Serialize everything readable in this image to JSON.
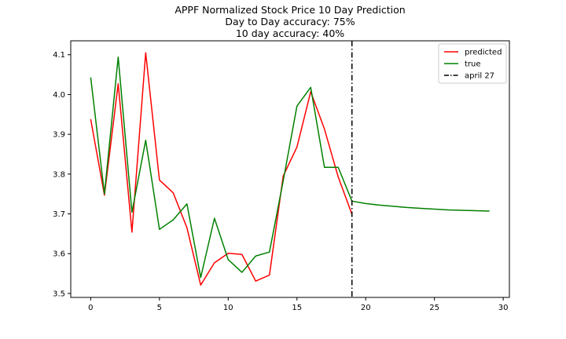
{
  "chart_data": {
    "type": "line",
    "title_lines": [
      "APPF Normalized Stock Price 10 Day Prediction",
      "Day to Day accuracy: 75%",
      "10 day accuracy: 40%"
    ],
    "xlabel": "",
    "ylabel": "",
    "xlim": [
      -1.45,
      30.45
    ],
    "ylim": [
      3.49,
      4.135
    ],
    "xticks": [
      0,
      5,
      10,
      15,
      20,
      25,
      30
    ],
    "xtick_labels": [
      "0",
      "5",
      "10",
      "15",
      "20",
      "25",
      "30"
    ],
    "yticks": [
      3.5,
      3.6,
      3.7,
      3.8,
      3.9,
      4.0,
      4.1
    ],
    "ytick_labels": [
      "3.5",
      "3.6",
      "3.7",
      "3.8",
      "3.9",
      "4.0",
      "4.1"
    ],
    "grid": false,
    "legend_position": "top-right",
    "series": [
      {
        "name": "predicted",
        "color": "#ff0000",
        "x": [
          0,
          1,
          2,
          3,
          4,
          5,
          6,
          7,
          8,
          9,
          10,
          11,
          12,
          13,
          14,
          15,
          16,
          17,
          18,
          19
        ],
        "values": [
          3.938,
          3.747,
          4.027,
          3.654,
          4.105,
          3.785,
          3.753,
          3.665,
          3.521,
          3.577,
          3.601,
          3.598,
          3.531,
          3.546,
          3.795,
          3.868,
          4.007,
          3.913,
          3.793,
          3.699
        ]
      },
      {
        "name": "true",
        "color": "#008000",
        "x": [
          0,
          1,
          2,
          3,
          4,
          5,
          6,
          7,
          8,
          9,
          10,
          11,
          12,
          13,
          14,
          15,
          16,
          17,
          18,
          19,
          20,
          21,
          22,
          23,
          24,
          25,
          26,
          27,
          28,
          29
        ],
        "values": [
          4.043,
          3.75,
          4.094,
          3.704,
          3.885,
          3.661,
          3.685,
          3.725,
          3.54,
          3.689,
          3.585,
          3.553,
          3.594,
          3.604,
          3.783,
          3.971,
          4.018,
          3.817,
          3.817,
          3.732,
          3.726,
          3.722,
          3.719,
          3.716,
          3.714,
          3.712,
          3.71,
          3.709,
          3.708,
          3.707
        ]
      }
    ],
    "vline": {
      "name": "april 27",
      "x": 19,
      "color": "#000000",
      "style": "dashdot"
    }
  }
}
